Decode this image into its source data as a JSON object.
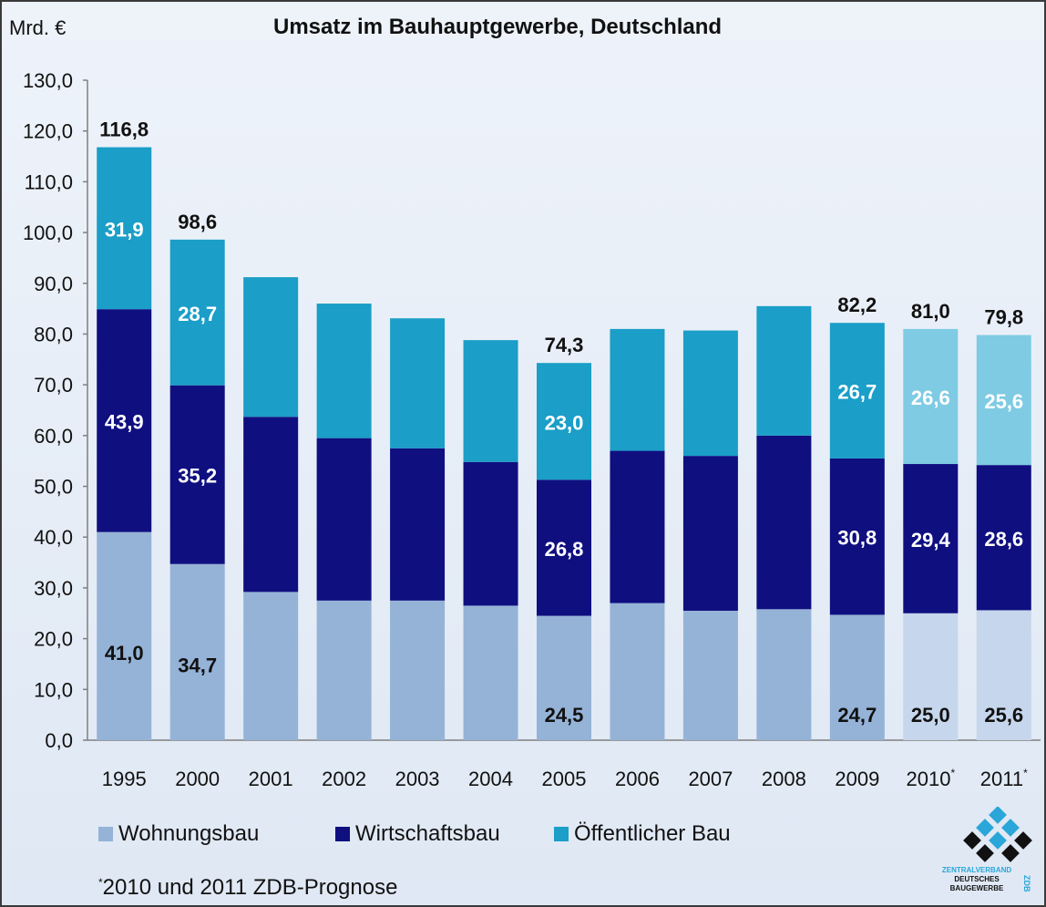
{
  "unit_label": "Mrd. €",
  "title": "Umsatz im Bauhauptgewerbe, Deutschland",
  "footnote": {
    "marker": "*",
    "text": "2010 und 2011 ZDB-Prognose"
  },
  "logo": {
    "line1": "ZENTRALVERBAND",
    "line2": "DEUTSCHES",
    "line3": "BAUGEWERBE",
    "side": "ZDB"
  },
  "colors": {
    "wohnungsbau": "#95b3d7",
    "wirtschaftsbau": "#0f0f80",
    "oeffentlicher_bau": "#1b9ec7",
    "wohnungsbau_forecast": "#c6d6ec",
    "wirtschaftsbau_forecast": "#0f0f80",
    "oeffentlicher_bau_forecast": "#7fcbe3"
  },
  "chart_data": {
    "type": "bar",
    "stacked": true,
    "title": "Umsatz im Bauhauptgewerbe, Deutschland",
    "ylabel": "Mrd. €",
    "ylim": [
      0,
      130
    ],
    "yticks": [
      "0,0",
      "10,0",
      "20,0",
      "30,0",
      "40,0",
      "50,0",
      "60,0",
      "70,0",
      "80,0",
      "90,0",
      "100,0",
      "110,0",
      "120,0",
      "130,0"
    ],
    "grid": false,
    "legend": "bottom",
    "categories": [
      "1995",
      "2000",
      "2001",
      "2002",
      "2003",
      "2004",
      "2005",
      "2006",
      "2007",
      "2008",
      "2009",
      "2010",
      "2011"
    ],
    "category_markers": [
      "",
      "",
      "",
      "",
      "",
      "",
      "",
      "",
      "",
      "",
      "",
      "*",
      "*"
    ],
    "forecast_categories": [
      "2010",
      "2011"
    ],
    "series": [
      {
        "name": "Wohnungsbau",
        "values": [
          41.0,
          34.7,
          29.2,
          27.5,
          27.5,
          26.5,
          24.5,
          27.0,
          25.5,
          25.8,
          24.7,
          25.0,
          25.6
        ],
        "labels": [
          "41,0",
          "34,7",
          "",
          "",
          "",
          "",
          "24,5",
          "",
          "",
          "",
          "24,7",
          "25,0",
          "25,6"
        ]
      },
      {
        "name": "Wirtschaftsbau",
        "values": [
          43.9,
          35.2,
          34.5,
          32.0,
          30.0,
          28.3,
          26.8,
          30.0,
          30.5,
          34.2,
          30.8,
          29.4,
          28.6
        ],
        "labels": [
          "43,9",
          "35,2",
          "",
          "",
          "",
          "",
          "26,8",
          "",
          "",
          "",
          "30,8",
          "29,4",
          "28,6"
        ]
      },
      {
        "name": "Öffentlicher Bau",
        "values": [
          31.9,
          28.7,
          27.5,
          26.5,
          25.6,
          24.0,
          23.0,
          24.0,
          24.7,
          25.5,
          26.7,
          26.6,
          25.6
        ],
        "labels": [
          "31,9",
          "28,7",
          "",
          "",
          "",
          "",
          "23,0",
          "",
          "",
          "",
          "26,7",
          "26,6",
          "25,6"
        ]
      }
    ],
    "totals": [
      116.8,
      98.6,
      91.2,
      86.0,
      83.1,
      78.8,
      74.3,
      81.0,
      80.7,
      85.5,
      82.2,
      81.0,
      79.8
    ],
    "total_labels": [
      "116,8",
      "98,6",
      "",
      "",
      "",
      "",
      "74,3",
      "",
      "",
      "",
      "82,2",
      "81,0",
      "79,8"
    ]
  }
}
